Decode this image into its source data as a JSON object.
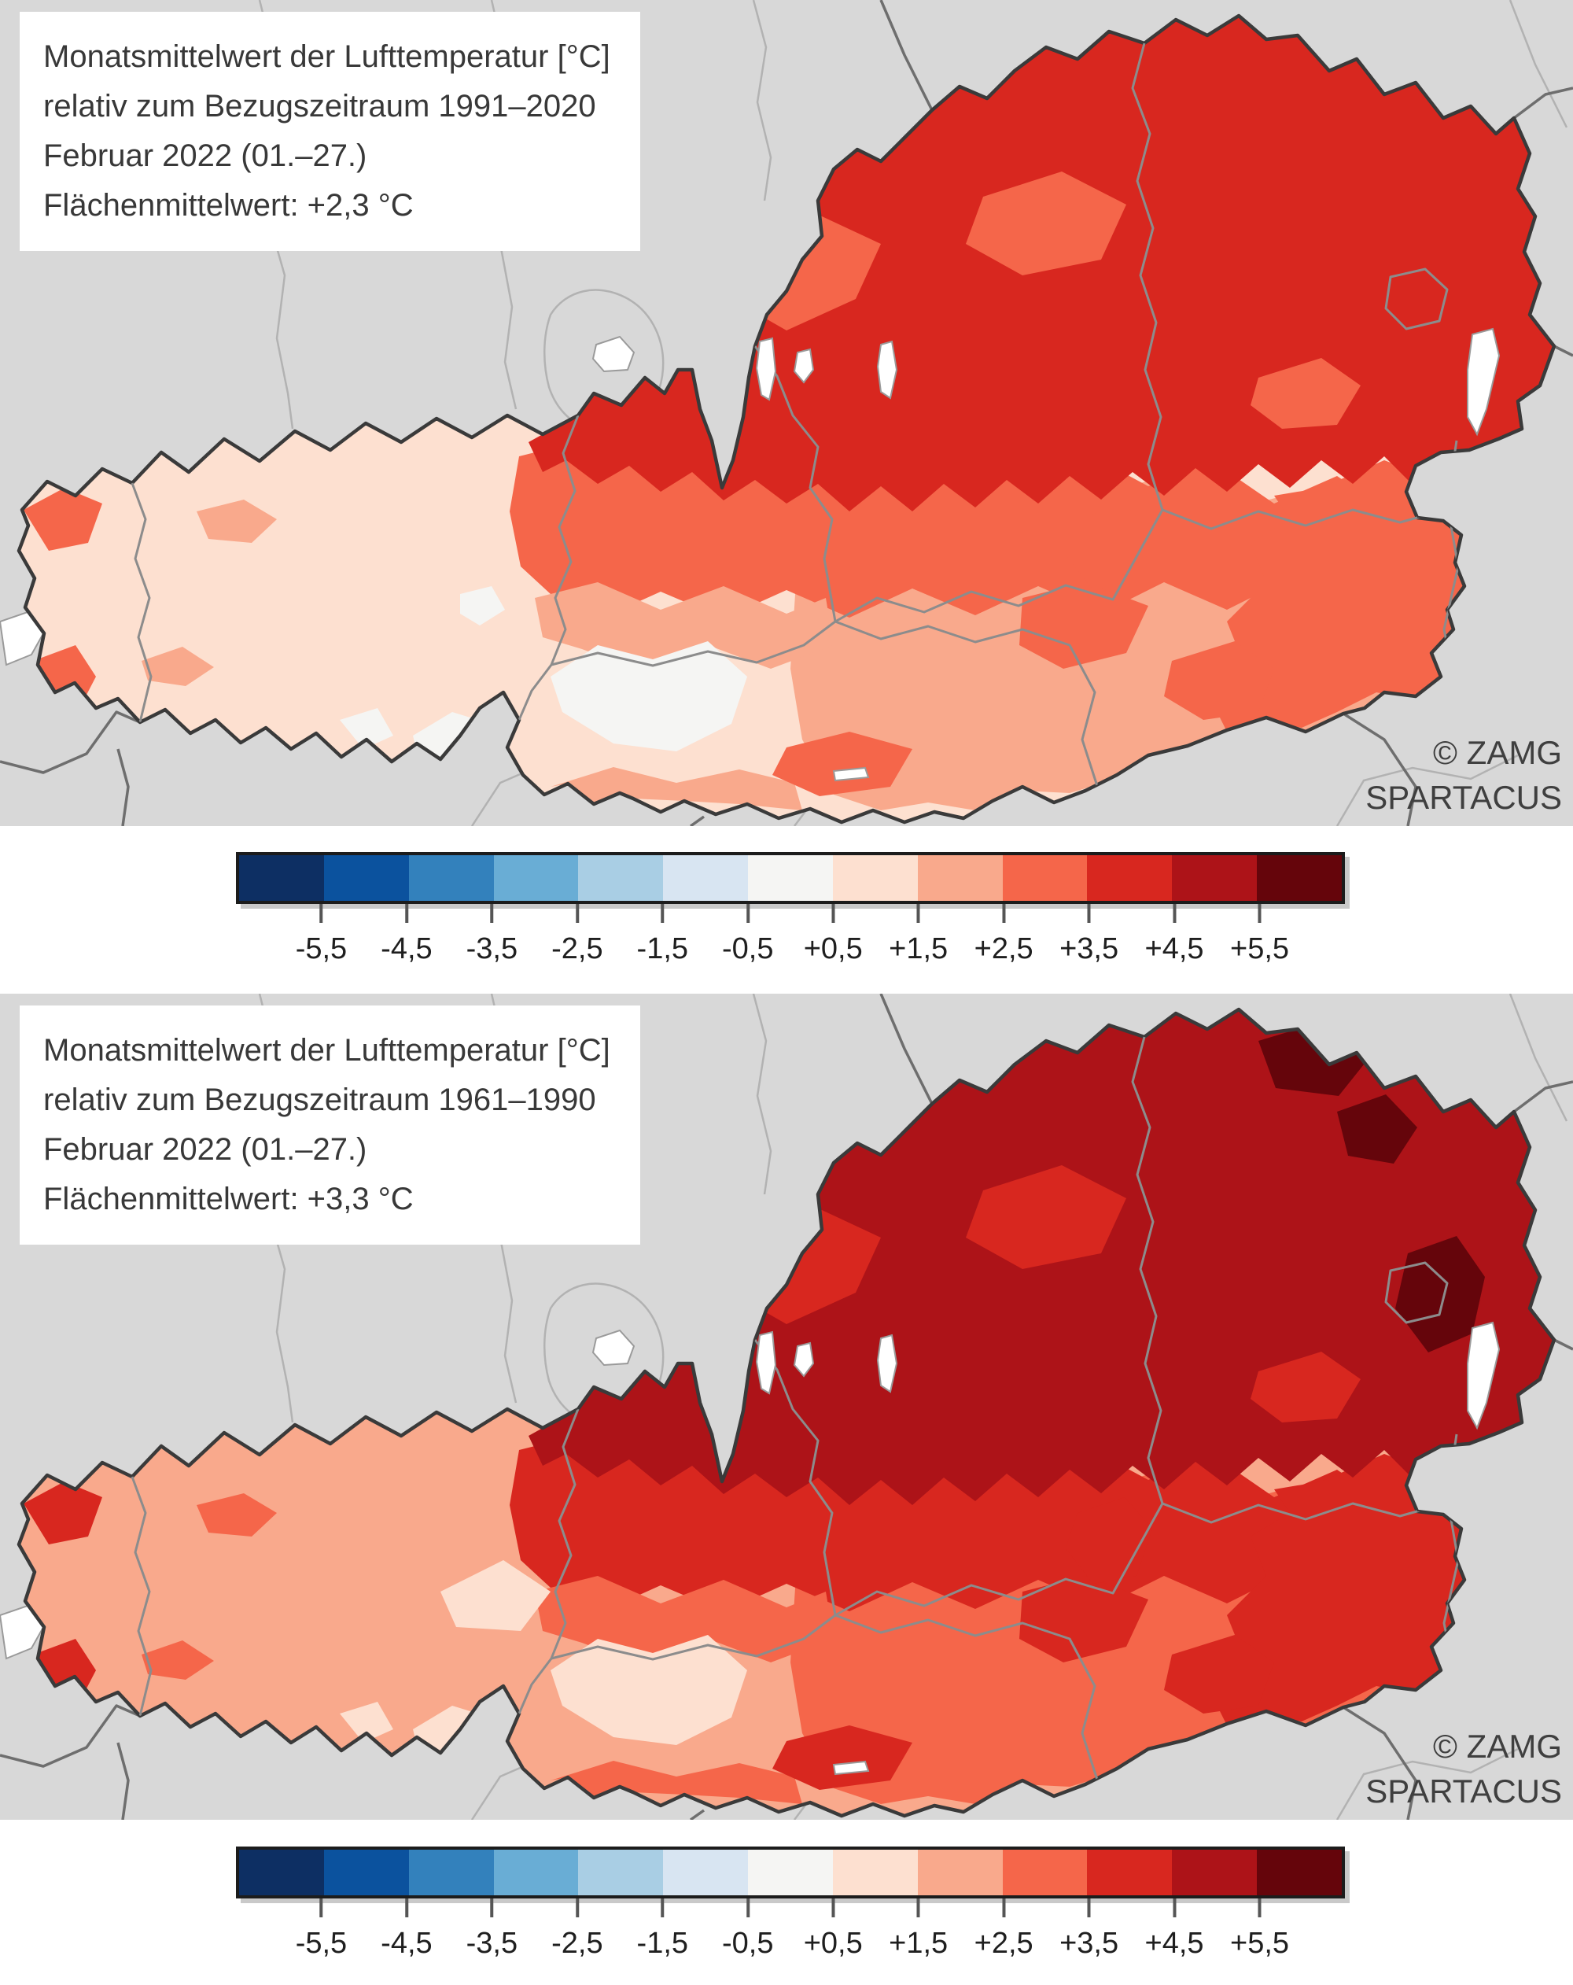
{
  "panels": [
    {
      "title_lines": [
        "Monatsmittelwert der Lufttemperatur [°C]",
        "relativ zum Bezugszeitraum 1991–2020",
        "Februar 2022 (01.–27.)",
        "Flächenmittelwert: +2,3 °C"
      ],
      "credit_line1": "© ZAMG",
      "credit_line2": "SPARTACUS"
    },
    {
      "title_lines": [
        "Monatsmittelwert der Lufttemperatur [°C]",
        "relativ zum Bezugszeitraum 1961–1990",
        "Februar 2022 (01.–27.)",
        "Flächenmittelwert: +3,3 °C"
      ],
      "credit_line1": "© ZAMG",
      "credit_line2": "SPARTACUS"
    }
  ],
  "legend": {
    "colors": [
      "#0d2f63",
      "#0b529e",
      "#3381bc",
      "#69add5",
      "#a9cee4",
      "#d8e5f2",
      "#f5f5f3",
      "#fde0d0",
      "#f9a98c",
      "#f5664a",
      "#d8271f",
      "#ad1318",
      "#65050b"
    ],
    "tick_labels": [
      "-5,5",
      "-4,5",
      "-3,5",
      "-2,5",
      "-1,5",
      "-0,5",
      "+0,5",
      "+1,5",
      "+2,5",
      "+3,5",
      "+4,5",
      "+5,5"
    ]
  },
  "chart_data": {
    "type": "map",
    "title": "Monatsmittelwert der Lufttemperatur [°C], Februar 2022 (01.–27.), Österreich (SPARTACUS)",
    "panels": [
      {
        "reference_period": "1991–2020",
        "area_mean_anomaly": "+2,3 °C"
      },
      {
        "reference_period": "1961–1990",
        "area_mean_anomaly": "+3,3 °C"
      }
    ],
    "legend_unit": "°C",
    "legend_tick_values": [
      -5.5,
      -4.5,
      -3.5,
      -2.5,
      -1.5,
      -0.5,
      0.5,
      1.5,
      2.5,
      3.5,
      4.5,
      5.5
    ],
    "legend_position": "below each map, horizontal"
  }
}
